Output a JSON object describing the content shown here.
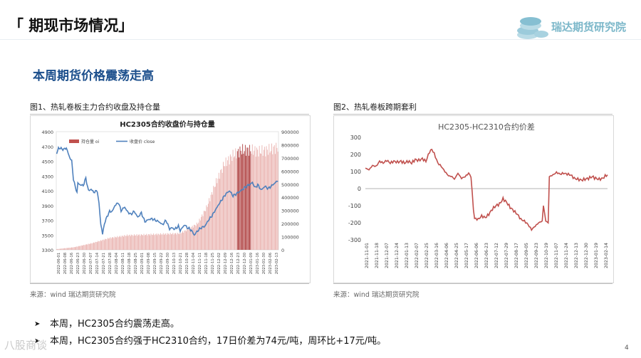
{
  "header": {
    "title": "「 期现市场情况」",
    "brand": "瑞达期货研究院"
  },
  "subtitle": "本周期货价格震荡走高",
  "figures": [
    {
      "caption": "图1、热轧卷板主力合约收盘及持仓量",
      "source": "来源：wind   瑞达期货研究院"
    },
    {
      "caption": "图2、热轧卷板跨期套利",
      "source": "来源：wind   瑞达期货研究院"
    }
  ],
  "bullets": [
    "本周，HC2305合约震荡走高。",
    "本周，HC2305合约强于HC2310合约，17日价差为74元/吨，周环比+17元/吨。"
  ],
  "page_number": "4",
  "watermark": "八股商谈",
  "colors": {
    "bar": "#c0504d",
    "line": "#4f81bd",
    "spread": "#c0504d",
    "brand": "#7bb7c9",
    "subtitle": "#1c4f8c"
  },
  "chart_data": [
    {
      "type": "bar+line",
      "title": "HC2305合约收盘价与持仓量",
      "legend": {
        "position": "top-left",
        "items": [
          "持仓量 oi",
          "收盘价 close"
        ]
      },
      "y_left": {
        "ticks": [
          3300,
          3500,
          3700,
          3900,
          4100,
          4300,
          4500,
          4700,
          4900
        ],
        "min": 3300,
        "max": 4900
      },
      "y_right": {
        "ticks": [
          0,
          100000,
          200000,
          300000,
          400000,
          500000,
          600000,
          700000,
          800000,
          900000
        ],
        "min": 0,
        "max": 900000
      },
      "x_labels": [
        "2022-06-01",
        "2022-06-08",
        "2022-06-16",
        "2022-06-23",
        "2022-06-30",
        "2022-07-07",
        "2022-07-14",
        "2022-07-21",
        "2022-07-28",
        "2022-08-04",
        "2022-08-11",
        "2022-08-18",
        "2022-08-25",
        "2022-09-01",
        "2022-09-08",
        "2022-09-15",
        "2022-09-22",
        "2022-09-30",
        "2022-10-13",
        "2022-10-21",
        "2022-10-28",
        "2022-11-04",
        "2022-11-11",
        "2022-11-18",
        "2022-11-25",
        "2022-12-02",
        "2022-12-09",
        "2022-12-16",
        "2022-12-23",
        "2022-12-30",
        "2023-01-09",
        "2023-01-16",
        "2023-01-30",
        "2023-02-06",
        "2023-02-13"
      ],
      "oi_series": {
        "name": "持仓量 oi",
        "anchors": [
          [
            0,
            5000
          ],
          [
            20,
            20000
          ],
          [
            40,
            50000
          ],
          [
            60,
            90000
          ],
          [
            80,
            110000
          ],
          [
            100,
            115000
          ],
          [
            120,
            120000
          ],
          [
            140,
            125000
          ],
          [
            150,
            160000
          ],
          [
            160,
            200000
          ],
          [
            170,
            320000
          ],
          [
            180,
            500000
          ],
          [
            190,
            650000
          ],
          [
            200,
            720000
          ],
          [
            210,
            760000
          ],
          [
            220,
            760000
          ],
          [
            230,
            750000
          ],
          [
            240,
            760000
          ],
          [
            250,
            780000
          ]
        ]
      },
      "close_series": {
        "name": "收盘价 close",
        "anchors": [
          [
            0,
            4600
          ],
          [
            2,
            4680
          ],
          [
            8,
            4660
          ],
          [
            11,
            4680
          ],
          [
            14,
            4570
          ],
          [
            17,
            4500
          ],
          [
            18,
            4380
          ],
          [
            19,
            4260
          ],
          [
            21,
            4150
          ],
          [
            23,
            4080
          ],
          [
            24,
            4200
          ],
          [
            27,
            4180
          ],
          [
            30,
            4170
          ],
          [
            33,
            4270
          ],
          [
            36,
            4100
          ],
          [
            39,
            4120
          ],
          [
            42,
            4080
          ],
          [
            46,
            4100
          ],
          [
            48,
            3920
          ],
          [
            50,
            3650
          ],
          [
            52,
            3510
          ],
          [
            54,
            3650
          ],
          [
            57,
            3750
          ],
          [
            60,
            3820
          ],
          [
            63,
            3820
          ],
          [
            66,
            3900
          ],
          [
            70,
            3940
          ],
          [
            73,
            3830
          ],
          [
            77,
            3880
          ],
          [
            80,
            3820
          ],
          [
            84,
            3780
          ],
          [
            88,
            3820
          ],
          [
            92,
            3740
          ],
          [
            96,
            3800
          ],
          [
            100,
            3680
          ],
          [
            104,
            3710
          ],
          [
            108,
            3720
          ],
          [
            112,
            3700
          ],
          [
            116,
            3680
          ],
          [
            120,
            3640
          ],
          [
            124,
            3700
          ],
          [
            128,
            3580
          ],
          [
            130,
            3600
          ],
          [
            134,
            3580
          ],
          [
            138,
            3620
          ],
          [
            140,
            3560
          ],
          [
            145,
            3640
          ],
          [
            148,
            3600
          ],
          [
            151,
            3580
          ],
          [
            153,
            3560
          ],
          [
            156,
            3500
          ],
          [
            160,
            3560
          ],
          [
            164,
            3600
          ],
          [
            168,
            3620
          ],
          [
            172,
            3700
          ],
          [
            176,
            3760
          ],
          [
            180,
            3840
          ],
          [
            184,
            3920
          ],
          [
            188,
            3990
          ],
          [
            192,
            4060
          ],
          [
            196,
            4100
          ],
          [
            200,
            4030
          ],
          [
            205,
            4070
          ],
          [
            210,
            4110
          ],
          [
            215,
            4160
          ],
          [
            218,
            4180
          ],
          [
            222,
            4210
          ],
          [
            225,
            4140
          ],
          [
            228,
            4180
          ],
          [
            232,
            4110
          ],
          [
            236,
            4160
          ],
          [
            240,
            4130
          ],
          [
            244,
            4170
          ],
          [
            248,
            4210
          ],
          [
            251,
            4240
          ]
        ]
      }
    },
    {
      "type": "line",
      "title": "HC2305-HC2310合约价差",
      "y_axis": {
        "ticks": [
          -300,
          -200,
          -100,
          0,
          100,
          200,
          300
        ],
        "min": -300,
        "max": 300
      },
      "x_labels": [
        "2021-11-01",
        "2021-11-18",
        "2021-12-07",
        "2021-12-24",
        "2022-01-13",
        "2022-02-07",
        "2022-02-25",
        "2022-03-16",
        "2022-04-06",
        "2022-04-25",
        "2022-05-17",
        "2022-06-06",
        "2022-06-23",
        "2022-07-12",
        "2022-07-29",
        "2022-08-17",
        "2022-09-05",
        "2022-09-23",
        "2022-10-19",
        "2022-11-07",
        "2022-11-24",
        "2022-12-13",
        "2022-12-30",
        "2023-01-19",
        "2023-02-14"
      ],
      "series": {
        "name": "HC2305-HC2310",
        "anchors": [
          [
            0,
            120
          ],
          [
            3,
            110
          ],
          [
            6,
            135
          ],
          [
            9,
            130
          ],
          [
            12,
            160
          ],
          [
            15,
            150
          ],
          [
            18,
            165
          ],
          [
            21,
            150
          ],
          [
            24,
            160
          ],
          [
            27,
            155
          ],
          [
            30,
            160
          ],
          [
            33,
            150
          ],
          [
            36,
            160
          ],
          [
            39,
            150
          ],
          [
            42,
            170
          ],
          [
            45,
            165
          ],
          [
            48,
            175
          ],
          [
            51,
            160
          ],
          [
            54,
            215
          ],
          [
            56,
            230
          ],
          [
            58,
            205
          ],
          [
            61,
            150
          ],
          [
            64,
            130
          ],
          [
            67,
            100
          ],
          [
            70,
            75
          ],
          [
            73,
            70
          ],
          [
            75,
            55
          ],
          [
            78,
            90
          ],
          [
            81,
            60
          ],
          [
            84,
            70
          ],
          [
            87,
            90
          ],
          [
            89,
            70
          ],
          [
            91,
            -120
          ],
          [
            92,
            -175
          ],
          [
            95,
            -180
          ],
          [
            98,
            -160
          ],
          [
            101,
            -170
          ],
          [
            104,
            -150
          ],
          [
            107,
            -120
          ],
          [
            110,
            -100
          ],
          [
            113,
            -90
          ],
          [
            116,
            -60
          ],
          [
            119,
            -80
          ],
          [
            122,
            -110
          ],
          [
            125,
            -130
          ],
          [
            128,
            -150
          ],
          [
            131,
            -180
          ],
          [
            134,
            -190
          ],
          [
            137,
            -210
          ],
          [
            140,
            -240
          ],
          [
            143,
            -220
          ],
          [
            146,
            -200
          ],
          [
            149,
            -190
          ],
          [
            150,
            -100
          ],
          [
            152,
            -190
          ],
          [
            154,
            -200
          ],
          [
            155,
            70
          ],
          [
            158,
            80
          ],
          [
            161,
            95
          ],
          [
            164,
            85
          ],
          [
            167,
            90
          ],
          [
            170,
            85
          ],
          [
            173,
            80
          ],
          [
            176,
            60
          ],
          [
            179,
            55
          ],
          [
            182,
            50
          ],
          [
            185,
            55
          ],
          [
            188,
            60
          ],
          [
            191,
            70
          ],
          [
            194,
            60
          ],
          [
            197,
            55
          ],
          [
            200,
            60
          ],
          [
            202,
            74
          ],
          [
            204,
            80
          ]
        ]
      }
    }
  ]
}
